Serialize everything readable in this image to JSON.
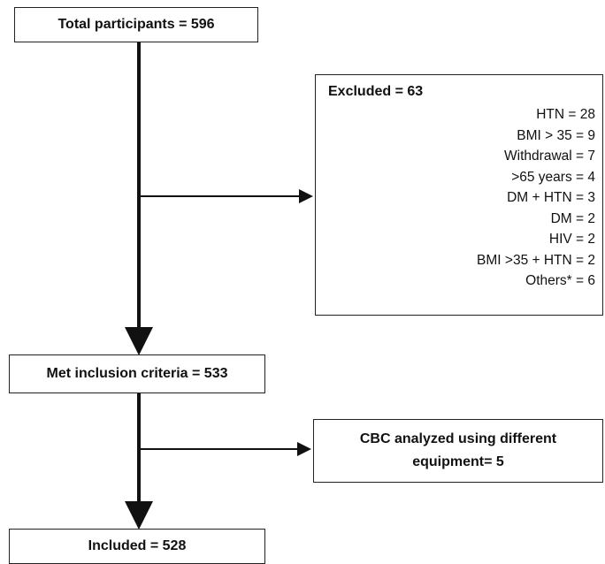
{
  "boxes": {
    "total": "Total participants = 596",
    "excluded": {
      "title": "Excluded = 63",
      "items": [
        "HTN = 28",
        "BMI > 35 = 9",
        "Withdrawal = 7",
        ">65 years = 4",
        "DM + HTN = 3",
        "DM = 2",
        "HIV = 2",
        "BMI >35 + HTN = 2",
        "Others* = 6"
      ]
    },
    "met": "Met inclusion criteria = 533",
    "cbc": {
      "lines": [
        "CBC analyzed using different",
        "equipment= 5"
      ]
    },
    "included": "Included = 528"
  }
}
